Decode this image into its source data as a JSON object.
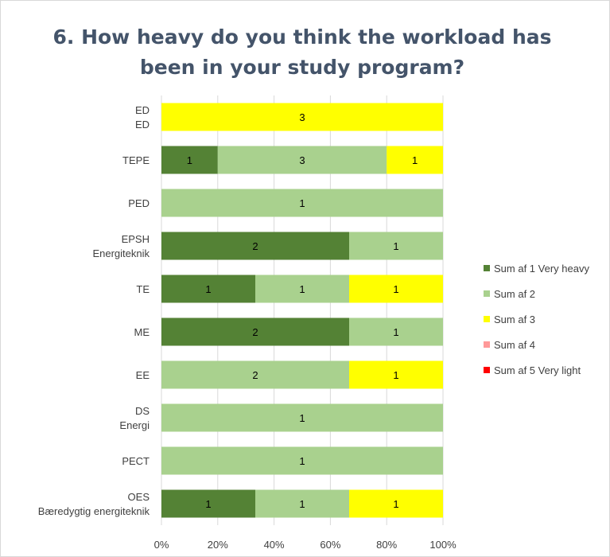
{
  "chart_data": {
    "type": "bar",
    "orientation": "horizontal",
    "stacking": "percent",
    "title": "6. How heavy do you think the workload has been in your study program?",
    "categories": [
      [
        "ED",
        "ED"
      ],
      [
        "TEPE"
      ],
      [
        "PED"
      ],
      [
        "EPSH",
        "Energiteknik"
      ],
      [
        "TE"
      ],
      [
        "ME"
      ],
      [
        "EE"
      ],
      [
        "DS",
        "Energi"
      ],
      [
        "PECT"
      ],
      [
        "OES",
        "Bæredygtig energiteknik"
      ]
    ],
    "series": [
      {
        "name": "Sum af 1 Very heavy",
        "color": "#548235",
        "values": [
          0,
          1,
          0,
          2,
          1,
          2,
          0,
          0,
          0,
          1
        ]
      },
      {
        "name": "Sum af 2",
        "color": "#a9d18e",
        "values": [
          0,
          3,
          1,
          1,
          1,
          1,
          2,
          1,
          1,
          1
        ]
      },
      {
        "name": "Sum af 3",
        "color": "#ffff00",
        "values": [
          3,
          1,
          0,
          0,
          1,
          0,
          1,
          0,
          0,
          1
        ]
      },
      {
        "name": "Sum af 4",
        "color": "#ff9999",
        "values": [
          0,
          0,
          0,
          0,
          0,
          0,
          0,
          0,
          0,
          0
        ]
      },
      {
        "name": "Sum af 5 Very light",
        "color": "#ff0000",
        "values": [
          0,
          0,
          0,
          0,
          0,
          0,
          0,
          0,
          0,
          0
        ]
      }
    ],
    "x_ticks": [
      "0%",
      "20%",
      "40%",
      "60%",
      "80%",
      "100%"
    ],
    "xlim": [
      0,
      100
    ],
    "grid": true,
    "legend_position": "right"
  }
}
